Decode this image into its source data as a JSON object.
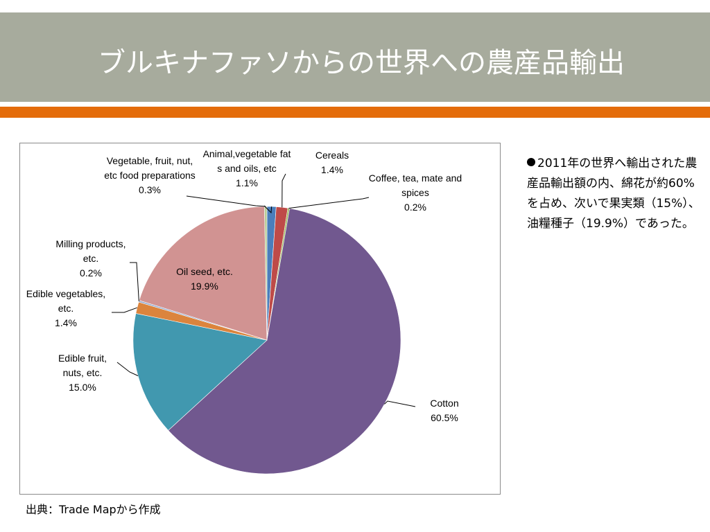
{
  "slide": {
    "title": "ブルキナファソからの世界への農産品輸出",
    "bullet": "2011年の世界へ輸出された農産品輸出額の内、綿花が約60%を占め、次いで果実類（15%）、油糧種子（19.9%）であった。",
    "source": "出典：Trade Mapから作成"
  },
  "colors": {
    "title_bar": "#a7ab9d",
    "accent_bar": "#e46c0a"
  },
  "chart_data": {
    "type": "pie",
    "title": "",
    "start_angle_deg": 0,
    "direction": "clockwise",
    "slices": [
      {
        "label": "Animal,vegetable fats and oils, etc",
        "value": 1.1,
        "display": "1.1%",
        "color": "#4a7ebb"
      },
      {
        "label": "Cereals",
        "value": 1.4,
        "display": "1.4%",
        "color": "#be4b48"
      },
      {
        "label": "Coffee, tea, mate and spices",
        "value": 0.2,
        "display": "0.2%",
        "color": "#98b954"
      },
      {
        "label": "Cotton",
        "value": 60.5,
        "display": "60.5%",
        "color": "#71588f"
      },
      {
        "label": "Edible fruit, nuts, etc.",
        "value": 15.0,
        "display": "15.0%",
        "color": "#4198af"
      },
      {
        "label": "Edible vegetables, etc.",
        "value": 1.4,
        "display": "1.4%",
        "color": "#db843d"
      },
      {
        "label": "Milling products, etc.",
        "value": 0.2,
        "display": "0.2%",
        "color": "#93a9cf"
      },
      {
        "label": "Oil seed, etc.",
        "value": 19.9,
        "display": "19.9%",
        "color": "#d19392"
      },
      {
        "label": "Vegetable, fruit, nut, etc food preparations",
        "value": 0.3,
        "display": "0.3%",
        "color": "#b9cd96"
      }
    ]
  }
}
